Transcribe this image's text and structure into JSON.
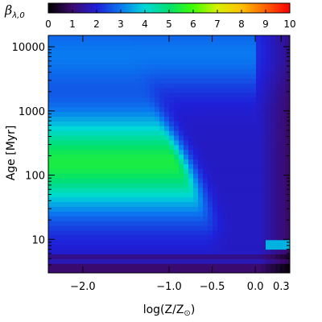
{
  "chart_data": {
    "type": "heatmap",
    "colorbar": {
      "title_symbol": "β",
      "title_subscript": "λ,0",
      "min": 0,
      "max": 10,
      "ticks": [
        "0",
        "1",
        "2",
        "3",
        "4",
        "5",
        "6",
        "7",
        "8",
        "9",
        "10"
      ],
      "colormap": "rainbow",
      "colors": [
        "#000000",
        "#3b0a6e",
        "#1f1fd8",
        "#0a78f0",
        "#00d8d8",
        "#00e070",
        "#40ff00",
        "#d8f000",
        "#ffc000",
        "#ff6000",
        "#ff0000"
      ]
    },
    "x_axis": {
      "ticks": [
        {
          "value": -2.0,
          "label": "−2.0"
        },
        {
          "value": -1.0,
          "label": "−1.0"
        },
        {
          "value": -0.5,
          "label": "−0.5"
        },
        {
          "value": 0.0,
          "label": "0.0"
        },
        {
          "value": 0.3,
          "label": "0.3"
        }
      ],
      "range": [
        -2.4,
        0.4
      ],
      "label_main": "log(Z/Z",
      "label_sub": "⊙",
      "label_end": ")"
    },
    "y_axis": {
      "scale": "log",
      "range": [
        3,
        15000
      ],
      "ticks": [
        {
          "value": 10,
          "label": "10"
        },
        {
          "value": 100,
          "label": "100"
        },
        {
          "value": 1000,
          "label": "1000"
        },
        {
          "value": 10000,
          "label": "10000"
        }
      ],
      "label": "Age [Myr]"
    }
  }
}
